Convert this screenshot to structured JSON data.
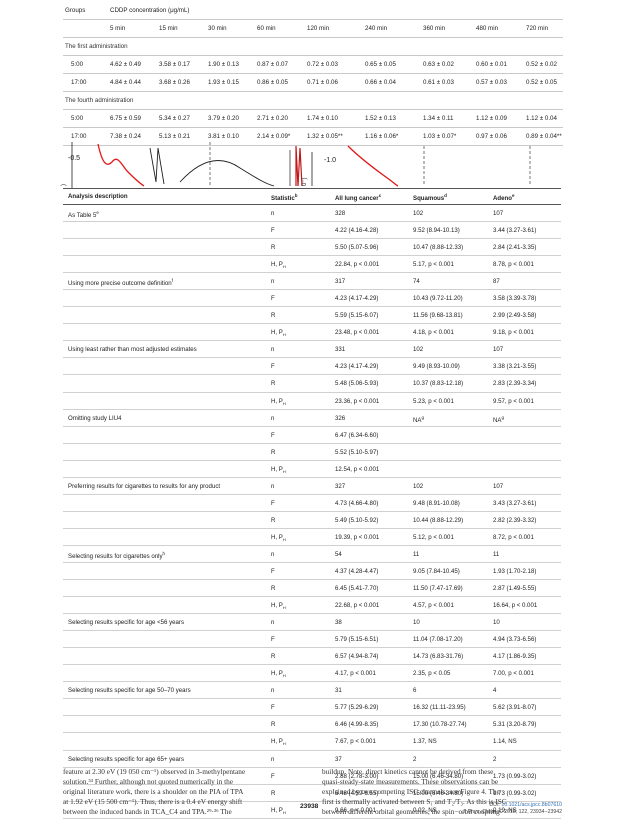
{
  "top_table": {
    "header_groups": "Groups",
    "header_conc": "CDDP concentration (μg/mL)",
    "times": [
      "5 min",
      "15 min",
      "30 min",
      "60 min",
      "120 min",
      "240 min",
      "360 min",
      "480 min",
      "720 min"
    ],
    "sections": [
      {
        "title": "The first administration",
        "rows": [
          [
            "5:00",
            "4.62 ± 0.49",
            "3.58 ± 0.17",
            "1.90 ± 0.13",
            "0.87 ± 0.07",
            "0.72 ± 0.03",
            "0.65 ± 0.05",
            "0.63 ± 0.02",
            "0.60 ± 0.01",
            "0.52 ± 0.02"
          ],
          [
            "17:00",
            "4.84 ± 0.44",
            "3.68 ± 0.26",
            "1.93 ± 0.15",
            "0.86 ± 0.05",
            "0.71 ± 0.06",
            "0.66 ± 0.04",
            "0.61 ± 0.03",
            "0.57 ± 0.03",
            "0.52 ± 0.05"
          ]
        ]
      },
      {
        "title": "The fourth administration",
        "rows": [
          [
            "5:00",
            "6.75 ± 0.59",
            "5.34 ± 0.27",
            "3.79 ± 0.20",
            "2.71 ± 0.20",
            "1.74 ± 0.10",
            "1.52 ± 0.13",
            "1.34 ± 0.11",
            "1.12 ± 0.09",
            "1.12 ± 0.04"
          ],
          [
            "17:00",
            "7.38 ± 0.24",
            "5.13 ± 0.21",
            "3.81 ± 0.10",
            "2.14 ± 0.09*",
            "1.32 ± 0.05**",
            "1.16 ± 0.06*",
            "1.03 ± 0.07*",
            "0.97 ± 0.06",
            "0.89 ± 0.04**"
          ]
        ]
      }
    ]
  },
  "figure_strip": {
    "label_left": "-0.5",
    "label_right": "-1.0"
  },
  "main_table": {
    "headers": {
      "desc": "Analysis description",
      "stat": "Statistic",
      "stat_sup": "b",
      "all": "All lung cancer",
      "all_sup": "c",
      "sq": "Squamous",
      "sq_sup": "d",
      "ad": "Adeno",
      "ad_sup": "e"
    },
    "rows": [
      {
        "desc": "As Table 5",
        "desc_sup": "e",
        "stat": "n",
        "all": "328",
        "sq": "102",
        "ad": "107"
      },
      {
        "desc": "",
        "stat": "F",
        "all": "4.22 (4.16-4.28)",
        "sq": "9.52 (8.94-10.13)",
        "ad": "3.44 (3.27-3.61)"
      },
      {
        "desc": "",
        "stat": "R",
        "all": "5.50 (5.07-5.96)",
        "sq": "10.47 (8.88-12.33)",
        "ad": "2.84 (2.41-3.35)"
      },
      {
        "desc": "",
        "stat": "H, P",
        "stat_sub": "H",
        "all": "22.84, p < 0.001",
        "sq": "5.17, p < 0.001",
        "ad": "8.78, p < 0.001"
      },
      {
        "desc": "Using more precise outcome definition",
        "desc_sup": "f",
        "stat": "n",
        "all": "317",
        "sq": "74",
        "ad": "87"
      },
      {
        "desc": "",
        "stat": "F",
        "all": "4.23 (4.17-4.29)",
        "sq": "10.43 (9.72-11.20)",
        "ad": "3.58 (3.39-3.78)"
      },
      {
        "desc": "",
        "stat": "R",
        "all": "5.59 (5.15-6.07)",
        "sq": "11.56 (9.68-13.81)",
        "ad": "2.99 (2.49-3.58)"
      },
      {
        "desc": "",
        "stat": "H, P",
        "stat_sub": "H",
        "all": "23.48, p < 0.001",
        "sq": "4.18, p < 0.001",
        "ad": "9.18, p < 0.001"
      },
      {
        "desc": "Using least rather than most adjusted estimates",
        "stat": "n",
        "all": "331",
        "sq": "102",
        "ad": "107"
      },
      {
        "desc": "",
        "stat": "F",
        "all": "4.23 (4.17-4.29)",
        "sq": "9.49 (8.93-10.09)",
        "ad": "3.38 (3.21-3.55)"
      },
      {
        "desc": "",
        "stat": "R",
        "all": "5.48 (5.06-5.93)",
        "sq": "10.37 (8.83-12.18)",
        "ad": "2.83 (2.39-3.34)"
      },
      {
        "desc": "",
        "stat": "H, P",
        "stat_sub": "H",
        "all": "23.36, p < 0.001",
        "sq": "5.23, p < 0.001",
        "ad": "9.57, p < 0.001"
      },
      {
        "desc": "Omitting study LIU4",
        "stat": "n",
        "all": "326",
        "sq": "NA",
        "sq_sup": "g",
        "ad": "NA",
        "ad_sup": "g"
      },
      {
        "desc": "",
        "stat": "F",
        "all": "6.47 (6.34-6.60)",
        "sq": "",
        "ad": ""
      },
      {
        "desc": "",
        "stat": "R",
        "all": "5.52 (5.10-5.97)",
        "sq": "",
        "ad": ""
      },
      {
        "desc": "",
        "stat": "H, P",
        "stat_sub": "H",
        "all": "12.54, p < 0.001",
        "sq": "",
        "ad": ""
      },
      {
        "desc": "Preferring results for cigarettes to results for any product",
        "stat": "n",
        "all": "327",
        "sq": "102",
        "ad": "107"
      },
      {
        "desc": "",
        "stat": "F",
        "all": "4.73 (4.66-4.80)",
        "sq": "9.48 (8.91-10.08)",
        "ad": "3.43 (3.27-3.61)"
      },
      {
        "desc": "",
        "stat": "R",
        "all": "5.49 (5.10-5.92)",
        "sq": "10.44 (8.88-12.29)",
        "ad": "2.82 (2.39-3.32)"
      },
      {
        "desc": "",
        "stat": "H, P",
        "stat_sub": "H",
        "all": "19.39, p < 0.001",
        "sq": "5.12, p < 0.001",
        "ad": "8.72, p < 0.001"
      },
      {
        "desc": "Selecting results for cigarettes only",
        "desc_sup": "h",
        "stat": "n",
        "all": "54",
        "sq": "11",
        "ad": "11"
      },
      {
        "desc": "",
        "stat": "F",
        "all": "4.37 (4.28-4.47)",
        "sq": "9.05 (7.84-10.45)",
        "ad": "1.93 (1.70-2.18)"
      },
      {
        "desc": "",
        "stat": "R",
        "all": "6.45 (5.41-7.70)",
        "sq": "11.50 (7.47-17.69)",
        "ad": "2.87 (1.49-5.55)"
      },
      {
        "desc": "",
        "stat": "H, P",
        "stat_sub": "H",
        "all": "22.68, p < 0.001",
        "sq": "4.57, p < 0.001",
        "ad": "16.64, p < 0.001"
      },
      {
        "desc": "Selecting results specific for age <56 years",
        "stat": "n",
        "all": "38",
        "sq": "10",
        "ad": "10"
      },
      {
        "desc": "",
        "stat": "F",
        "all": "5.79 (5.15-6.51)",
        "sq": "11.04 (7.08-17.20)",
        "ad": "4.94 (3.73-6.56)"
      },
      {
        "desc": "",
        "stat": "R",
        "all": "6.57 (4.94-8.74)",
        "sq": "14.73 (6.83-31.76)",
        "ad": "4.17 (1.86-9.35)"
      },
      {
        "desc": "",
        "stat": "H, P",
        "stat_sub": "H",
        "all": "4.17, p < 0.001",
        "sq": "2.35, p < 0.05",
        "ad": "7.00, p < 0.001"
      },
      {
        "desc": "Selecting results specific for age 50–70 years",
        "stat": "n",
        "all": "31",
        "sq": "6",
        "ad": "4"
      },
      {
        "desc": "",
        "stat": "F",
        "all": "5.77 (5.29-6.29)",
        "sq": "16.32 (11.11-23.95)",
        "ad": "5.62 (3.91-8.07)"
      },
      {
        "desc": "",
        "stat": "R",
        "all": "6.46 (4.99-8.35)",
        "sq": "17.30 (10.78-27.74)",
        "ad": "5.31 (3.20-8.79)"
      },
      {
        "desc": "",
        "stat": "H, P",
        "stat_sub": "H",
        "all": "7.67, p < 0.001",
        "sq": "1.37, NS",
        "ad": "1.14, NS"
      },
      {
        "desc": "Selecting results specific for age 65+ years",
        "stat": "n",
        "all": "37",
        "sq": "2",
        "ad": "2"
      },
      {
        "desc": "",
        "stat": "F",
        "all": "2.88 (2.78-3.00)",
        "sq": "15.00 (6.46-34.80)",
        "ad": "1.73 (0.99-3.02)"
      },
      {
        "desc": "",
        "stat": "R",
        "all": "5.48 (4.59-6.55)",
        "sq": "15.00 (6.46-34.80)",
        "ad": "1.73 (0.99-3.02)"
      },
      {
        "desc": "",
        "stat": "H, P",
        "stat_sub": "H",
        "all": "9.66, p < 0.001",
        "sq": "0.02, NS",
        "ad": "0.19, NS"
      }
    ]
  },
  "body_text": {
    "left_lines": [
      "feature at 2.30 eV (19 050 cm⁻¹) observed in 3-methylpentane",
      "solution.⁵³ Further, although not quoted numerically in the",
      "original literature work, there is a shoulder on the PIA of TPA",
      "at 1.92 eV (15 500 cm⁻¹). Thus, there is a 0.4 eV energy shift",
      "between the induced bands in TCA_C4 and TPA.²⁹·³⁶ The"
    ],
    "right_lines": [
      "buildup. Note, direct kinetics cannot be derived from these",
      "quasi-steady-state measurements. These observations can be",
      "explained by two competing ISC channels; see Figure 4. The",
      "first is thermally activated between S₁ and T₂/T₃. As this is ISC",
      "between different orbital geometries, the spin−orbit coupling"
    ]
  },
  "footer": {
    "page": "23938",
    "doi_label": "DOI: ",
    "doi": "10.1021/acs.jpcc.8b07610",
    "journal": "J. Phys. Chem. C 2018, 122, 23934−23942"
  }
}
